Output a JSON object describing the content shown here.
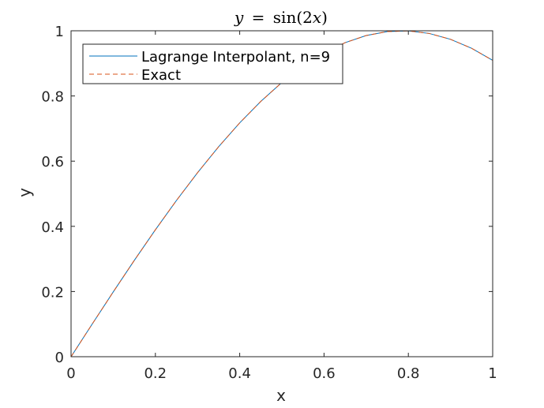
{
  "chart_data": {
    "type": "line",
    "title": "y = sin(2x)",
    "title_parts": {
      "lhs": "y",
      "eq": "=",
      "fn": "sin",
      "open": "(",
      "arg_num": "2",
      "arg_var": "x",
      "close": ")"
    },
    "xlabel": "x",
    "ylabel": "y",
    "xlim": [
      0,
      1
    ],
    "ylim": [
      0,
      1
    ],
    "xticks": [
      0,
      0.2,
      0.4,
      0.6,
      0.8,
      1
    ],
    "xtick_labels": [
      "0",
      "0.2",
      "0.4",
      "0.6",
      "0.8",
      "1"
    ],
    "yticks": [
      0,
      0.2,
      0.4,
      0.6,
      0.8,
      1
    ],
    "ytick_labels": [
      "0",
      "0.2",
      "0.4",
      "0.6",
      "0.8",
      "1"
    ],
    "grid": false,
    "legend": {
      "placement": "top-left",
      "entries": [
        "Lagrange Interpolant, n=9",
        "Exact"
      ]
    },
    "x": [
      0,
      0.05,
      0.1,
      0.15,
      0.2,
      0.25,
      0.3,
      0.35,
      0.4,
      0.45,
      0.5,
      0.55,
      0.6,
      0.65,
      0.7,
      0.75,
      0.8,
      0.85,
      0.9,
      0.95,
      1
    ],
    "series": [
      {
        "name": "Lagrange Interpolant, n=9",
        "color": "#0072BD",
        "style": "solid",
        "values": [
          0,
          0.0998,
          0.1987,
          0.2955,
          0.3894,
          0.4794,
          0.5646,
          0.6442,
          0.7174,
          0.7833,
          0.8415,
          0.8912,
          0.932,
          0.9636,
          0.9854,
          0.9975,
          0.9996,
          0.9917,
          0.9738,
          0.9463,
          0.9093
        ]
      },
      {
        "name": "Exact",
        "color": "#D95319",
        "style": "dashed",
        "values": [
          0,
          0.0998,
          0.1987,
          0.2955,
          0.3894,
          0.4794,
          0.5646,
          0.6442,
          0.7174,
          0.7833,
          0.8415,
          0.8912,
          0.932,
          0.9636,
          0.9854,
          0.9975,
          0.9996,
          0.9917,
          0.9738,
          0.9463,
          0.9093
        ]
      }
    ]
  }
}
